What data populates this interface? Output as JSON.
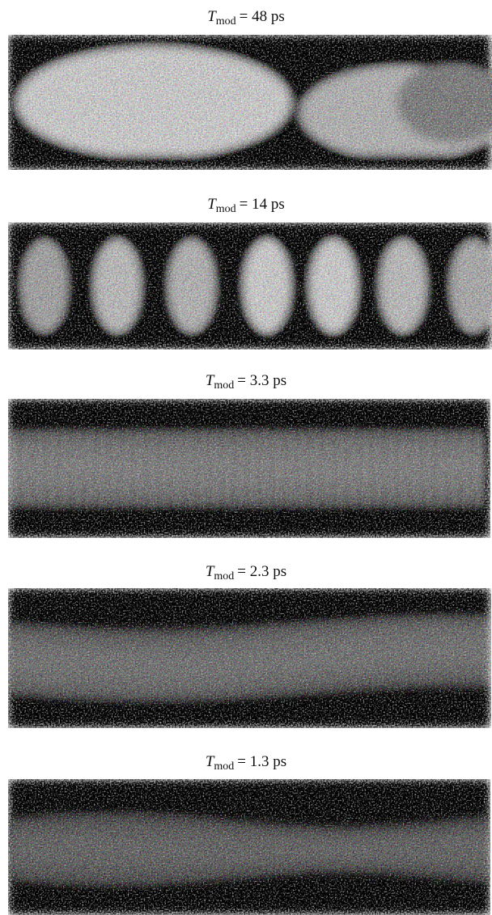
{
  "panels": [
    {
      "symbol": "T",
      "subscript": "mod",
      "rest": "= 48 ps"
    },
    {
      "symbol": "T",
      "subscript": "mod",
      "rest": "= 14 ps"
    },
    {
      "symbol": "T",
      "subscript": "mod",
      "rest": "= 3.3 ps"
    },
    {
      "symbol": "T",
      "subscript": "mod",
      "rest": "= 2.3 ps"
    },
    {
      "symbol": "T",
      "subscript": "mod",
      "rest": "= 1.3 ps"
    }
  ]
}
